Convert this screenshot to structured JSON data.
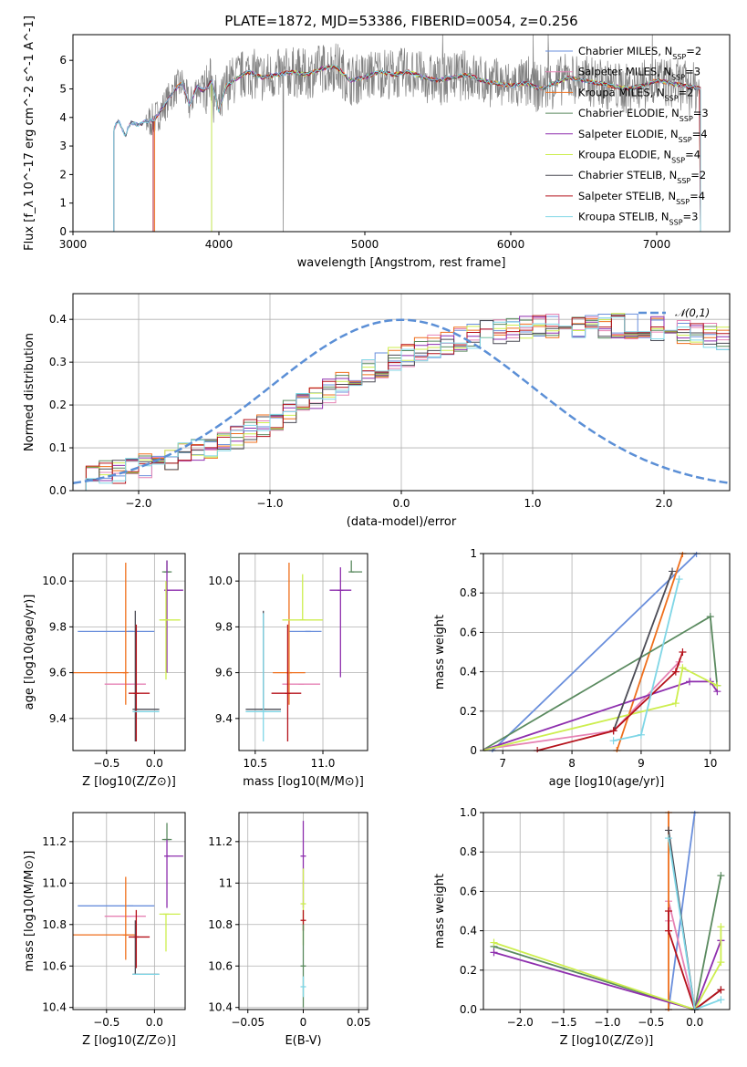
{
  "figure_title": "PLATE=1872, MJD=53386, FIBERID=0054, z=0.256",
  "palette": {
    "Chabrier MILES": "#6a8fdc",
    "Salpeter MILES": "#e683b4",
    "Kroupa MILES": "#ef6f1c",
    "Chabrier ELODIE": "#5a8a5f",
    "Salpeter ELODIE": "#8e2fae",
    "Kroupa ELODIE": "#cdee4f",
    "Chabrier STELIB": "#4b4b55",
    "Salpeter STELIB": "#b5121b",
    "Kroupa STELIB": "#7fd6e6",
    "data": "#808080",
    "normal": "#5b8fd6"
  },
  "chart_data": [
    {
      "id": "spectrum",
      "type": "line",
      "xlabel": "wavelength [Angstrom, rest frame]",
      "ylabel": "Flux [f_λ 10^-17 erg cm^-2 s^-1 A^-1]",
      "xlim": [
        3000,
        7500
      ],
      "ylim": [
        0,
        6.9
      ],
      "xticks": [
        3000,
        4000,
        5000,
        6000,
        7000
      ],
      "yticks": [
        0,
        1,
        2,
        3,
        4,
        5,
        6
      ],
      "legend_position": "top-right",
      "legend": [
        {
          "label": "Chabrier MILES, N_SSP=2",
          "color": "#6a8fdc"
        },
        {
          "label": "Salpeter MILES, N_SSP=3",
          "color": "#e683b4"
        },
        {
          "label": "Kroupa MILES, N_SSP=2",
          "color": "#ef6f1c"
        },
        {
          "label": "Chabrier ELODIE, N_SSP=3",
          "color": "#5a8a5f"
        },
        {
          "label": "Salpeter ELODIE, N_SSP=4",
          "color": "#8e2fae"
        },
        {
          "label": "Kroupa ELODIE, N_SSP=4",
          "color": "#cdee4f"
        },
        {
          "label": "Chabrier STELIB, N_SSP=2",
          "color": "#4b4b55"
        },
        {
          "label": "Salpeter STELIB, N_SSP=4",
          "color": "#b5121b"
        },
        {
          "label": "Kroupa STELIB, N_SSP=3",
          "color": "#7fd6e6"
        }
      ],
      "continuum_knots": {
        "x": [
          3280,
          3310,
          3330,
          3360,
          3380,
          3400,
          3450,
          3500,
          3550,
          3600,
          3650,
          3700,
          3750,
          3800,
          3850,
          3900,
          3950,
          4000,
          4050,
          4100,
          4200,
          4300,
          4400,
          4500,
          4600,
          4700,
          4800,
          4900,
          5000,
          5100,
          5200,
          5300,
          5400,
          5500,
          5600,
          5700,
          5800,
          5900,
          6000,
          6100,
          6200,
          6300,
          6400,
          6500,
          6600,
          6700,
          6800,
          6900,
          7000,
          7100,
          7200,
          7300
        ],
        "y": [
          3.6,
          3.9,
          3.7,
          3.3,
          3.7,
          3.8,
          3.75,
          3.85,
          3.9,
          4.2,
          4.6,
          5.0,
          5.2,
          4.4,
          5.1,
          4.9,
          5.3,
          4.2,
          5.1,
          5.3,
          5.6,
          5.4,
          5.5,
          5.6,
          5.5,
          5.7,
          5.8,
          5.3,
          5.4,
          5.6,
          5.5,
          5.6,
          5.4,
          5.3,
          5.4,
          5.5,
          5.3,
          5.2,
          5.1,
          5.2,
          5.0,
          5.2,
          5.4,
          5.3,
          5.2,
          5.1,
          5.0,
          5.1,
          5.3,
          5.2,
          5.1,
          5.0
        ]
      },
      "model_start_x": [
        3280,
        3280,
        3560,
        3950,
        3550,
        3950,
        3280,
        3550,
        3280
      ]
    },
    {
      "id": "residuals",
      "type": "bar",
      "xlabel": "(data-model)/error",
      "ylabel": "Normed distribution",
      "xlim": [
        -2.5,
        2.5
      ],
      "ylim": [
        0,
        0.46
      ],
      "xticks": [
        -2,
        -1,
        0,
        1,
        2
      ],
      "yticks": [
        0.0,
        0.1,
        0.2,
        0.3,
        0.4
      ],
      "grid": true,
      "legend": {
        "label": "𝒩(0,1)",
        "color": "#5b8fd6",
        "position": "top-right"
      },
      "bin_width": 0.1,
      "bins_start": -2.5,
      "series_base": [
        0.022,
        0.035,
        0.04,
        0.045,
        0.05,
        0.058,
        0.065,
        0.075,
        0.082,
        0.09,
        0.1,
        0.11,
        0.125,
        0.14,
        0.155,
        0.17,
        0.185,
        0.2,
        0.215,
        0.232,
        0.25,
        0.265,
        0.28,
        0.293,
        0.305,
        0.318,
        0.328,
        0.338,
        0.347,
        0.355,
        0.362,
        0.368,
        0.373,
        0.377,
        0.38,
        0.382,
        0.383,
        0.384,
        0.385,
        0.385,
        0.385,
        0.384,
        0.383,
        0.382,
        0.38,
        0.377,
        0.373,
        0.368,
        0.362,
        0.355,
        0.347,
        0.338,
        0.328,
        0.318,
        0.305,
        0.293,
        0.28,
        0.265,
        0.25,
        0.232,
        0.215,
        0.2,
        0.185,
        0.17,
        0.155,
        0.14,
        0.125,
        0.11,
        0.1,
        0.09,
        0.082,
        0.075,
        0.068,
        0.062,
        0.058,
        0.055,
        0.052,
        0.05,
        0.052,
        0.055
      ]
    },
    {
      "id": "age-vs-Z",
      "type": "scatter",
      "xlabel": "Z [log10(Z/Z⊙)]",
      "ylabel": "age  [log10(age/yr)]",
      "xlim": [
        -0.85,
        0.32
      ],
      "ylim": [
        9.26,
        10.12
      ],
      "xticks": [
        -0.5,
        0.0
      ],
      "yticks": [
        9.4,
        9.6,
        9.8,
        10.0
      ],
      "grid": true,
      "points": [
        {
          "model": "Chabrier MILES",
          "x": -0.25,
          "y": 9.78,
          "xerr": [
            0.55,
            0.25
          ],
          "yerr": [
            0.0,
            0.0
          ]
        },
        {
          "model": "Salpeter MILES",
          "x": -0.27,
          "y": 9.55,
          "xerr": [
            0.25,
            0.18
          ],
          "yerr": [
            0.0,
            0.0
          ]
        },
        {
          "model": "Kroupa MILES",
          "x": -0.3,
          "y": 9.6,
          "xerr": [
            0.55,
            0.0
          ],
          "yerr": [
            0.14,
            0.48
          ]
        },
        {
          "model": "Chabrier ELODIE",
          "x": 0.13,
          "y": 10.04,
          "xerr": [
            0.05,
            0.05
          ],
          "yerr": [
            0.0,
            0.05
          ]
        },
        {
          "model": "Salpeter ELODIE",
          "x": 0.13,
          "y": 9.96,
          "xerr": [
            0.0,
            0.17
          ],
          "yerr": [
            0.36,
            0.13
          ]
        },
        {
          "model": "Kroupa ELODIE",
          "x": 0.12,
          "y": 9.83,
          "xerr": [
            0.07,
            0.15
          ],
          "yerr": [
            0.26,
            0.17
          ]
        },
        {
          "model": "Chabrier STELIB",
          "x": -0.2,
          "y": 9.44,
          "xerr": [
            0.0,
            0.25
          ],
          "yerr": [
            0.14,
            0.43
          ]
        },
        {
          "model": "Salpeter STELIB",
          "x": -0.19,
          "y": 9.51,
          "xerr": [
            0.08,
            0.14
          ],
          "yerr": [
            0.21,
            0.3
          ]
        },
        {
          "model": "Kroupa STELIB",
          "x": -0.2,
          "y": 9.43,
          "xerr": [
            0.0,
            0.25
          ],
          "yerr": [
            0.0,
            0.0
          ]
        }
      ]
    },
    {
      "id": "age-vs-mass",
      "type": "scatter",
      "xlabel": "mass [log10(M/M⊙)]",
      "ylabel": "",
      "xlim": [
        10.38,
        11.33
      ],
      "ylim": [
        9.26,
        10.12
      ],
      "xticks": [
        10.5,
        11.0
      ],
      "yticks": [
        9.4,
        9.6,
        9.8,
        10.0
      ],
      "grid": true,
      "points": [
        {
          "model": "Chabrier MILES",
          "x": 10.89,
          "y": 9.78,
          "xerr": [
            0.14,
            0.1
          ],
          "yerr": [
            0.0,
            0.0
          ]
        },
        {
          "model": "Salpeter MILES",
          "x": 10.84,
          "y": 9.55,
          "xerr": [
            0.14,
            0.14
          ],
          "yerr": [
            0.0,
            0.0
          ]
        },
        {
          "model": "Kroupa MILES",
          "x": 10.75,
          "y": 9.6,
          "xerr": [
            0.12,
            0.12
          ],
          "yerr": [
            0.14,
            0.48
          ]
        },
        {
          "model": "Chabrier ELODIE",
          "x": 11.21,
          "y": 10.04,
          "xerr": [
            0.0,
            0.08
          ],
          "yerr": [
            0.0,
            0.05
          ]
        },
        {
          "model": "Salpeter ELODIE",
          "x": 11.13,
          "y": 9.96,
          "xerr": [
            0.08,
            0.08
          ],
          "yerr": [
            0.38,
            0.1
          ]
        },
        {
          "model": "Kroupa ELODIE",
          "x": 10.85,
          "y": 9.83,
          "xerr": [
            0.15,
            0.15
          ],
          "yerr": [
            0.0,
            0.2
          ]
        },
        {
          "model": "Chabrier STELIB",
          "x": 10.56,
          "y": 9.44,
          "xerr": [
            0.13,
            0.13
          ],
          "yerr": [
            0.0,
            0.43
          ]
        },
        {
          "model": "Salpeter STELIB",
          "x": 10.74,
          "y": 9.51,
          "xerr": [
            0.12,
            0.1
          ],
          "yerr": [
            0.21,
            0.3
          ]
        },
        {
          "model": "Kroupa STELIB",
          "x": 10.56,
          "y": 9.43,
          "xerr": [
            0.13,
            0.13
          ],
          "yerr": [
            0.13,
            0.43
          ]
        }
      ]
    },
    {
      "id": "weight-vs-age",
      "type": "line",
      "xlabel": "age  [log10(age/yr)]",
      "ylabel": "mass weight",
      "xlim": [
        6.72,
        10.28
      ],
      "ylim": [
        0.0,
        1.0
      ],
      "xticks": [
        7,
        8,
        9,
        10
      ],
      "yticks": [
        0.0,
        0.2,
        0.4,
        0.6,
        0.8,
        1.0
      ],
      "grid": true,
      "series": [
        {
          "model": "Chabrier MILES",
          "x": [
            6.85,
            9.8
          ],
          "y": [
            0.0,
            1.0
          ]
        },
        {
          "model": "Salpeter MILES",
          "x": [
            6.6,
            8.6,
            9.55
          ],
          "y": [
            0.0,
            0.1,
            0.45
          ]
        },
        {
          "model": "Kroupa MILES",
          "x": [
            8.65,
            9.6
          ],
          "y": [
            0.0,
            1.0
          ]
        },
        {
          "model": "Chabrier ELODIE",
          "x": [
            6.7,
            10.0,
            10.1
          ],
          "y": [
            0.0,
            0.68,
            0.33
          ]
        },
        {
          "model": "Salpeter ELODIE",
          "x": [
            6.7,
            9.7,
            10.0,
            10.1
          ],
          "y": [
            0.0,
            0.35,
            0.35,
            0.3
          ]
        },
        {
          "model": "Kroupa ELODIE",
          "x": [
            6.7,
            9.5,
            9.6,
            10.1
          ],
          "y": [
            0.0,
            0.24,
            0.42,
            0.33
          ]
        },
        {
          "model": "Chabrier STELIB",
          "x": [
            8.6,
            9.45
          ],
          "y": [
            0.1,
            0.91
          ]
        },
        {
          "model": "Salpeter STELIB",
          "x": [
            7.5,
            8.6,
            9.5,
            9.6
          ],
          "y": [
            0.0,
            0.1,
            0.4,
            0.5
          ]
        },
        {
          "model": "Kroupa STELIB",
          "x": [
            8.6,
            9.0,
            9.55
          ],
          "y": [
            0.05,
            0.08,
            0.87
          ]
        }
      ]
    },
    {
      "id": "mass-vs-Z",
      "type": "scatter",
      "xlabel": "Z [log10(Z/Z⊙)]",
      "ylabel": "mass [log10(M/M⊙)]",
      "xlim": [
        -0.85,
        0.32
      ],
      "ylim": [
        10.39,
        11.34
      ],
      "xticks": [
        -0.5,
        0.0
      ],
      "yticks": [
        10.4,
        10.6,
        10.8,
        11.0,
        11.2
      ],
      "grid": true,
      "points": [
        {
          "model": "Chabrier MILES",
          "x": -0.25,
          "y": 10.89,
          "xerr": [
            0.55,
            0.25
          ],
          "yerr": [
            0.0,
            0.0
          ]
        },
        {
          "model": "Salpeter MILES",
          "x": -0.27,
          "y": 10.84,
          "xerr": [
            0.25,
            0.18
          ],
          "yerr": [
            0.0,
            0.0
          ]
        },
        {
          "model": "Kroupa MILES",
          "x": -0.3,
          "y": 10.75,
          "xerr": [
            0.55,
            0.1
          ],
          "yerr": [
            0.12,
            0.28
          ]
        },
        {
          "model": "Chabrier ELODIE",
          "x": 0.13,
          "y": 11.21,
          "xerr": [
            0.05,
            0.05
          ],
          "yerr": [
            0.0,
            0.08
          ]
        },
        {
          "model": "Salpeter ELODIE",
          "x": 0.13,
          "y": 11.13,
          "xerr": [
            0.0,
            0.17
          ],
          "yerr": [
            0.25,
            0.08
          ]
        },
        {
          "model": "Kroupa ELODIE",
          "x": 0.12,
          "y": 10.85,
          "xerr": [
            0.07,
            0.15
          ],
          "yerr": [
            0.18,
            0.0
          ]
        },
        {
          "model": "Chabrier STELIB",
          "x": -0.2,
          "y": 10.56,
          "xerr": [
            0.0,
            0.25
          ],
          "yerr": [
            0.0,
            0.26
          ]
        },
        {
          "model": "Salpeter STELIB",
          "x": -0.19,
          "y": 10.74,
          "xerr": [
            0.08,
            0.14
          ],
          "yerr": [
            0.15,
            0.13
          ]
        },
        {
          "model": "Kroupa STELIB",
          "x": -0.2,
          "y": 10.56,
          "xerr": [
            0.0,
            0.25
          ],
          "yerr": [
            0.0,
            0.0
          ]
        }
      ]
    },
    {
      "id": "mass-vs-ebv",
      "type": "scatter",
      "xlabel": "E(B-V)",
      "ylabel": "",
      "xlim": [
        -0.058,
        0.058
      ],
      "ylim": [
        10.39,
        11.34
      ],
      "xticks": [
        -0.05,
        0.0,
        0.05
      ],
      "yticks": [
        10.4,
        10.6,
        10.8,
        11.0,
        11.2
      ],
      "grid": true,
      "points": [
        {
          "model": "Salpeter ELODIE",
          "x": 0.0,
          "y": 11.13,
          "xerr": [
            0,
            0
          ],
          "yerr": [
            0.25,
            0.17
          ]
        },
        {
          "model": "Kroupa ELODIE",
          "x": 0.0,
          "y": 10.9,
          "xerr": [
            0,
            0
          ],
          "yerr": [
            0.2,
            0.17
          ]
        },
        {
          "model": "Salpeter STELIB",
          "x": 0.0,
          "y": 10.82,
          "xerr": [
            0,
            0
          ],
          "yerr": [
            0.05,
            0.05
          ]
        },
        {
          "model": "Chabrier ELODIE",
          "x": 0.0,
          "y": 10.6,
          "xerr": [
            0,
            0
          ],
          "yerr": [
            0.2,
            0.2
          ]
        },
        {
          "model": "Kroupa STELIB",
          "x": 0.0,
          "y": 10.5,
          "xerr": [
            0,
            0
          ],
          "yerr": [
            0.05,
            0.05
          ]
        }
      ]
    },
    {
      "id": "weight-vs-Z",
      "type": "line",
      "xlabel": "Z [log10(Z/Z⊙)]",
      "ylabel": "mass weight",
      "xlim": [
        -2.42,
        0.4
      ],
      "ylim": [
        0.0,
        1.0
      ],
      "xticks": [
        -2.0,
        -1.5,
        -1.0,
        -0.5,
        0.0
      ],
      "yticks": [
        0.0,
        0.2,
        0.4,
        0.6,
        0.8,
        1.0
      ],
      "grid": true,
      "series": [
        {
          "model": "Chabrier MILES",
          "x": [
            -0.3,
            0.0
          ],
          "y": [
            0.0,
            1.0
          ]
        },
        {
          "model": "Salpeter MILES",
          "x": [
            -0.3,
            -0.3,
            -0.3,
            0.0
          ],
          "y": [
            0.4,
            0.45,
            0.55,
            0.0
          ]
        },
        {
          "model": "Kroupa MILES",
          "x": [
            -0.3,
            -0.3
          ],
          "y": [
            0.0,
            1.0
          ]
        },
        {
          "model": "Chabrier ELODIE",
          "x": [
            -2.3,
            0.0,
            0.3
          ],
          "y": [
            0.32,
            0.0,
            0.68
          ]
        },
        {
          "model": "Salpeter ELODIE",
          "x": [
            -2.3,
            0.0,
            0.3,
            0.3
          ],
          "y": [
            0.29,
            0.0,
            0.35,
            0.35
          ]
        },
        {
          "model": "Kroupa ELODIE",
          "x": [
            -2.3,
            0.0,
            0.3,
            0.3
          ],
          "y": [
            0.34,
            0.0,
            0.24,
            0.42
          ]
        },
        {
          "model": "Chabrier STELIB",
          "x": [
            -0.3,
            0.0,
            0.3
          ],
          "y": [
            0.91,
            0.0,
            0.1
          ]
        },
        {
          "model": "Salpeter STELIB",
          "x": [
            -0.3,
            -0.3,
            0.0,
            0.3
          ],
          "y": [
            0.5,
            0.4,
            0.0,
            0.1
          ]
        },
        {
          "model": "Kroupa STELIB",
          "x": [
            -0.3,
            0.0,
            0.3
          ],
          "y": [
            0.87,
            0.0,
            0.05
          ]
        }
      ]
    }
  ]
}
